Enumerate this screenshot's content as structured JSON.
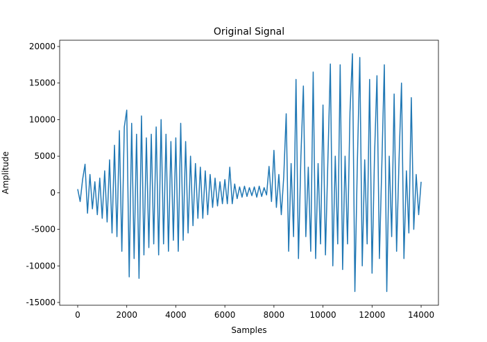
{
  "chart_data": {
    "type": "line",
    "title": "Original Signal",
    "xlabel": "Samples",
    "ylabel": "Amplitude",
    "color": "#1f77b4",
    "x": [
      0,
      100,
      200,
      300,
      400,
      500,
      600,
      700,
      800,
      900,
      1000,
      1100,
      1200,
      1300,
      1400,
      1500,
      1600,
      1700,
      1800,
      1900,
      2000,
      2100,
      2200,
      2300,
      2400,
      2500,
      2600,
      2700,
      2800,
      2900,
      3000,
      3100,
      3200,
      3300,
      3400,
      3500,
      3600,
      3700,
      3800,
      3900,
      4000,
      4100,
      4200,
      4300,
      4400,
      4500,
      4600,
      4700,
      4800,
      4900,
      5000,
      5100,
      5200,
      5300,
      5400,
      5500,
      5600,
      5700,
      5800,
      5900,
      6000,
      6100,
      6200,
      6300,
      6400,
      6500,
      6600,
      6700,
      6800,
      6900,
      7000,
      7100,
      7200,
      7300,
      7400,
      7500,
      7600,
      7700,
      7800,
      7900,
      8000,
      8100,
      8200,
      8300,
      8400,
      8500,
      8600,
      8700,
      8800,
      8900,
      9000,
      9100,
      9200,
      9300,
      9400,
      9500,
      9600,
      9700,
      9800,
      9900,
      10000,
      10100,
      10200,
      10300,
      10400,
      10500,
      10600,
      10700,
      10800,
      10900,
      11000,
      11100,
      11200,
      11300,
      11400,
      11500,
      11600,
      11700,
      11800,
      11900,
      12000,
      12100,
      12200,
      12300,
      12400,
      12500,
      12600,
      12700,
      12800,
      12900,
      13000,
      13100,
      13200,
      13300,
      13400,
      13500,
      13600,
      13700,
      13800,
      13900,
      14000
    ],
    "values": [
      500,
      -1200,
      1800,
      3900,
      -2800,
      2500,
      -2200,
      1500,
      -3000,
      2000,
      -3500,
      3000,
      -4000,
      4500,
      -5500,
      6500,
      -6000,
      8500,
      -8000,
      9000,
      11300,
      -11500,
      9500,
      -9000,
      8000,
      -11700,
      10500,
      -8500,
      7500,
      -7500,
      8000,
      -7000,
      9000,
      -8500,
      10000,
      -7000,
      8000,
      -8000,
      7000,
      -6500,
      7500,
      -8000,
      9500,
      -6500,
      7000,
      -5500,
      5000,
      -4500,
      4000,
      -3500,
      3500,
      -3500,
      3000,
      -3000,
      2500,
      -2000,
      2000,
      -1800,
      1500,
      -1500,
      1800,
      -1500,
      3500,
      -1500,
      1200,
      -800,
      800,
      -600,
      900,
      -500,
      700,
      -400,
      800,
      -600,
      900,
      -500,
      700,
      -300,
      3600,
      -1200,
      5800,
      -2000,
      2500,
      -3000,
      2200,
      10800,
      -8000,
      4000,
      -6000,
      15500,
      -9000,
      5000,
      14600,
      -6000,
      3500,
      -8000,
      16500,
      -9000,
      4000,
      -7000,
      12000,
      -8500,
      4500,
      17600,
      -10000,
      5000,
      -7000,
      17500,
      -10500,
      5000,
      -7000,
      11000,
      19000,
      -13500,
      4000,
      18500,
      -10000,
      4500,
      -7000,
      15500,
      -11000,
      5000,
      16000,
      -9000,
      4000,
      17500,
      -13500,
      5000,
      -6000,
      13500,
      -8000,
      4500,
      15000,
      -9000,
      3000,
      -5500,
      13000,
      -5000,
      2500,
      -3000,
      1500
    ],
    "xlim": [
      -735,
      14706
    ],
    "ylim": [
      -15379,
      20854
    ],
    "xticks": [
      0,
      2000,
      4000,
      6000,
      8000,
      10000,
      12000,
      14000
    ],
    "yticks": [
      -15000,
      -10000,
      -5000,
      0,
      5000,
      10000,
      15000,
      20000
    ]
  }
}
